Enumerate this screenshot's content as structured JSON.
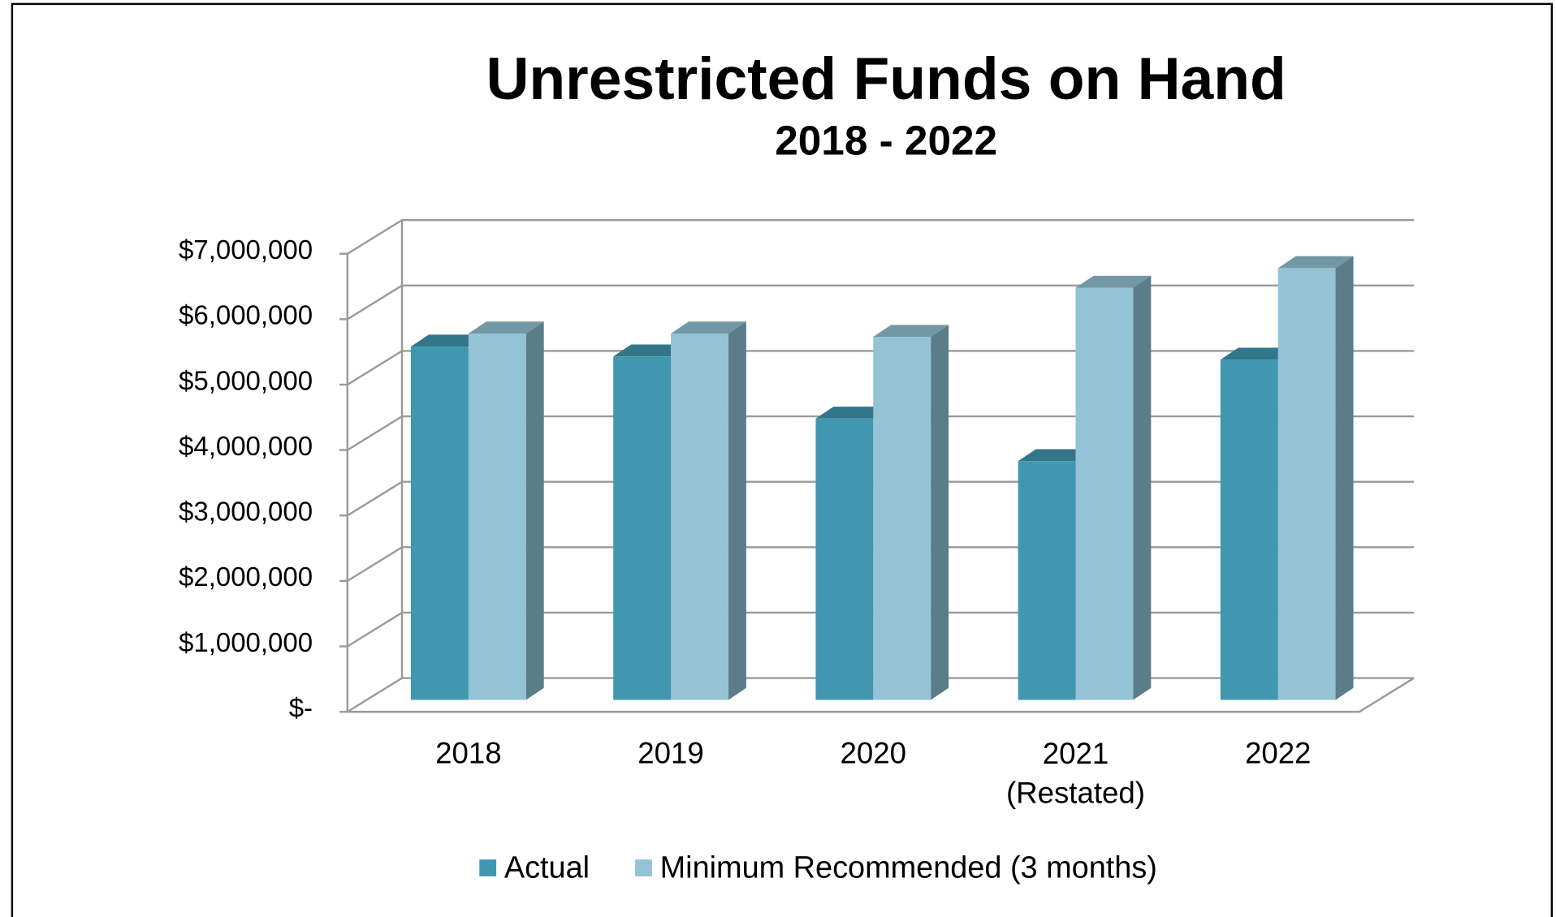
{
  "chart_data": {
    "type": "bar3d",
    "title": "Unrestricted Funds on Hand",
    "subtitle": "2018 - 2022",
    "categories": [
      "2018",
      "2019",
      "2020",
      "2021 (Restated)",
      "2022"
    ],
    "series": [
      {
        "name": "Actual",
        "color": "#4197b0",
        "values": [
          5400000,
          5250000,
          4300000,
          3650000,
          5200000
        ]
      },
      {
        "name": "Minimum Recommended (3 months)",
        "color": "#93c3d4",
        "values": [
          5600000,
          5600000,
          5550000,
          6300000,
          6600000
        ]
      }
    ],
    "ylim": [
      0,
      7000000
    ],
    "yticks": [
      {
        "value": 0,
        "label": "$-"
      },
      {
        "value": 1000000,
        "label": "$1,000,000"
      },
      {
        "value": 2000000,
        "label": "$2,000,000"
      },
      {
        "value": 3000000,
        "label": "$3,000,000"
      },
      {
        "value": 4000000,
        "label": "$4,000,000"
      },
      {
        "value": 5000000,
        "label": "$5,000,000"
      },
      {
        "value": 6000000,
        "label": "$6,000,000"
      },
      {
        "value": 7000000,
        "label": "$7,000,000"
      }
    ],
    "grid": true,
    "legend": "bottom"
  }
}
